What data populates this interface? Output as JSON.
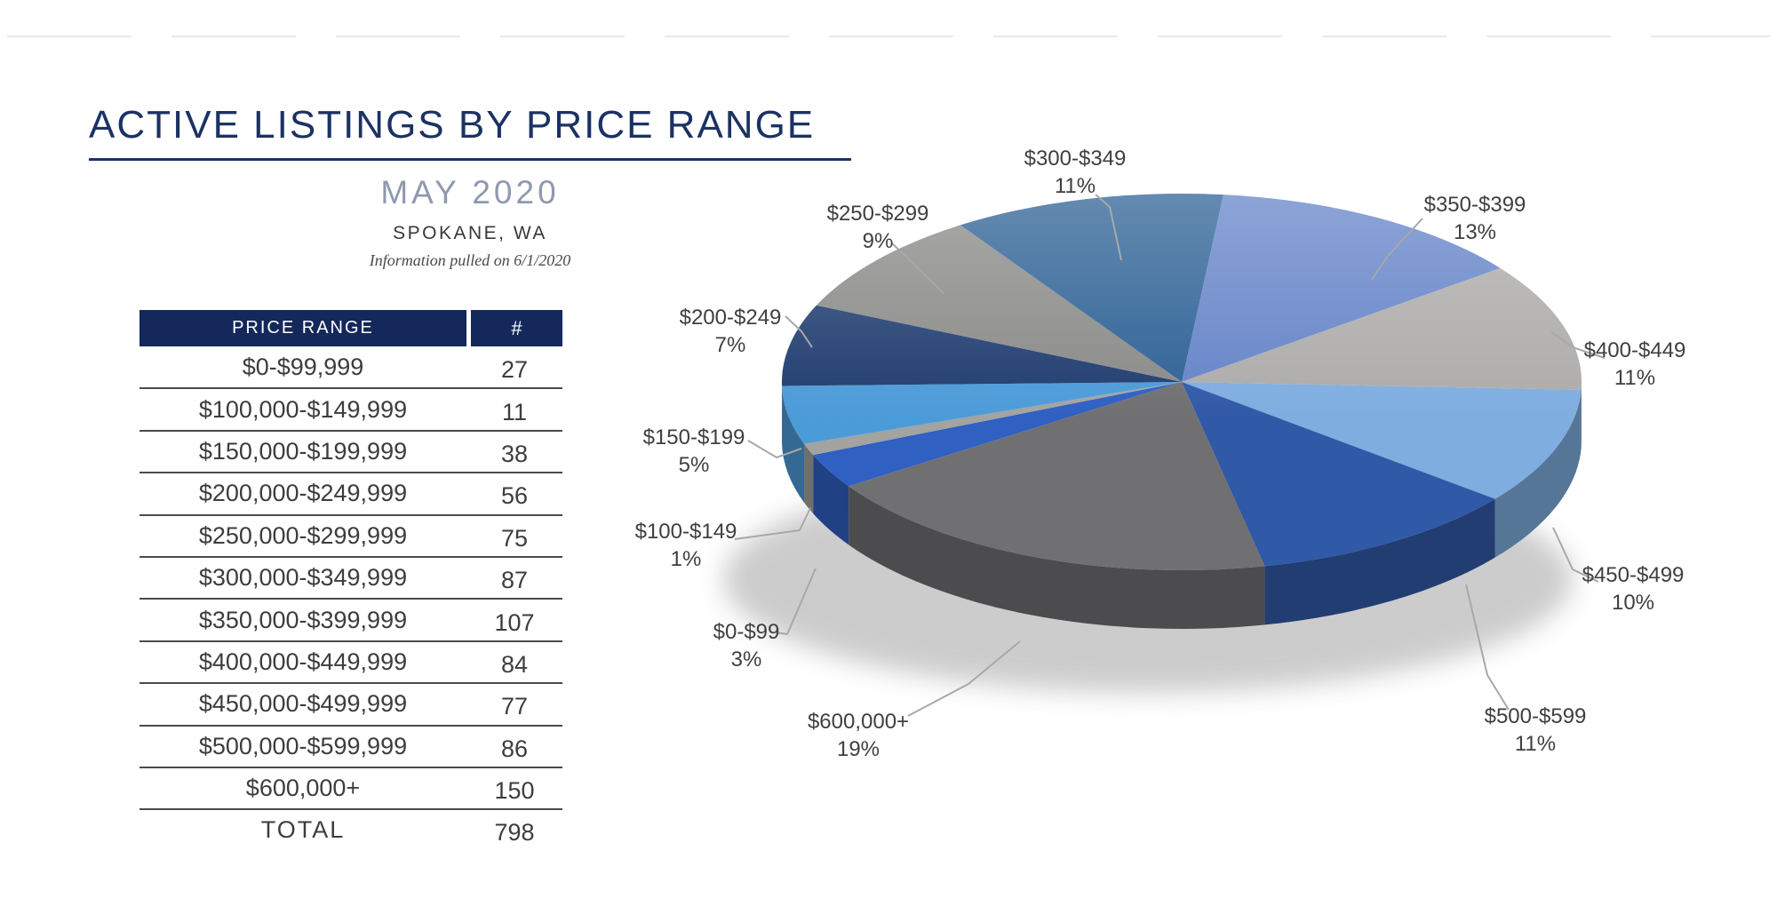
{
  "page": {
    "title": "ACTIVE LISTINGS BY PRICE RANGE",
    "subtitle": "MAY 2020",
    "location": "SPOKANE, WA",
    "note": "Information pulled on 6/1/2020"
  },
  "colors": {
    "accent_navy": "#1c3263",
    "table_header_bg": "#15285b",
    "table_header_text": "#ffffff",
    "subtitle_gray": "#8f99af",
    "leader_line_gray": "#a8a8a8"
  },
  "table": {
    "headers": [
      "PRICE RANGE",
      "#"
    ],
    "rows": [
      {
        "range": "$0-$99,999",
        "count": "27"
      },
      {
        "range": "$100,000-$149,999",
        "count": "11"
      },
      {
        "range": "$150,000-$199,999",
        "count": "38"
      },
      {
        "range": "$200,000-$249,999",
        "count": "56"
      },
      {
        "range": "$250,000-$299,999",
        "count": "75"
      },
      {
        "range": "$300,000-$349,999",
        "count": "87"
      },
      {
        "range": "$350,000-$399,999",
        "count": "107"
      },
      {
        "range": "$400,000-$449,999",
        "count": "84"
      },
      {
        "range": "$450,000-$499,999",
        "count": "77"
      },
      {
        "range": "$500,000-$599,999",
        "count": "86"
      },
      {
        "range": "$600,000+",
        "count": "150"
      }
    ],
    "total_label": "TOTAL",
    "total_value": "798"
  },
  "chart_data": {
    "type": "pie",
    "projection": "3d",
    "legend": "none",
    "labels_outside": true,
    "slices": [
      {
        "label": "$0-$99",
        "pct": 3,
        "pct_label": "3%",
        "color": "#2f60c2"
      },
      {
        "label": "$100-$149",
        "pct": 1,
        "pct_label": "1%",
        "color": "#a3a3a0"
      },
      {
        "label": "$150-$199",
        "pct": 5,
        "pct_label": "5%",
        "color": "#4c9bd9"
      },
      {
        "label": "$200-$249",
        "pct": 7,
        "pct_label": "7%",
        "color": "#203d70"
      },
      {
        "label": "$250-$299",
        "pct": 9,
        "pct_label": "9%",
        "color": "#8a8a88"
      },
      {
        "label": "$300-$349",
        "pct": 11,
        "pct_label": "11%",
        "color": "#2e6295"
      },
      {
        "label": "$350-$399",
        "pct": 13,
        "pct_label": "13%",
        "color": "#6584c8"
      },
      {
        "label": "$400-$449",
        "pct": 11,
        "pct_label": "11%",
        "color": "#adacaa"
      },
      {
        "label": "$450-$499",
        "pct": 10,
        "pct_label": "10%",
        "color": "#7fade0"
      },
      {
        "label": "$500-$599",
        "pct": 11,
        "pct_label": "11%",
        "color": "#3059a7"
      },
      {
        "label": "$600,000+",
        "pct": 19,
        "pct_label": "19%",
        "color": "#707072"
      }
    ]
  }
}
